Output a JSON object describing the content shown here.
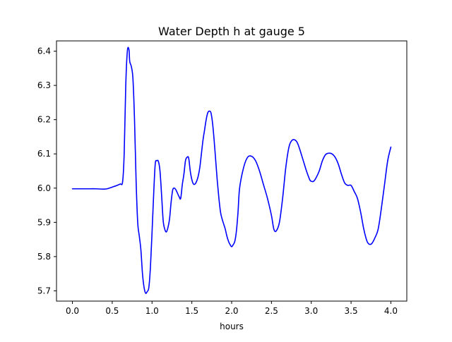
{
  "chart_data": {
    "type": "line",
    "title": "Water Depth h at gauge 5",
    "xlabel": "hours",
    "ylabel": "",
    "xlim": [
      -0.2,
      4.2
    ],
    "ylim": [
      5.67,
      6.43
    ],
    "grid": false,
    "x_ticks": [
      0.0,
      0.5,
      1.0,
      1.5,
      2.0,
      2.5,
      3.0,
      3.5,
      4.0
    ],
    "x_tick_labels": [
      "0.0",
      "0.5",
      "1.0",
      "1.5",
      "2.0",
      "2.5",
      "3.0",
      "3.5",
      "4.0"
    ],
    "y_ticks": [
      5.7,
      5.8,
      5.9,
      6.0,
      6.1,
      6.2,
      6.3,
      6.4
    ],
    "y_tick_labels": [
      "5.7",
      "5.8",
      "5.9",
      "6.0",
      "6.1",
      "6.2",
      "6.3",
      "6.4"
    ],
    "series": [
      {
        "color": "#0000ff",
        "x": [
          0.0,
          0.2,
          0.3,
          0.4,
          0.45,
          0.5,
          0.55,
          0.6,
          0.63,
          0.65,
          0.67,
          0.69,
          0.71,
          0.72,
          0.74,
          0.76,
          0.78,
          0.8,
          0.82,
          0.84,
          0.86,
          0.88,
          0.9,
          0.92,
          0.94,
          0.96,
          0.98,
          1.0,
          1.02,
          1.04,
          1.06,
          1.08,
          1.1,
          1.12,
          1.14,
          1.16,
          1.18,
          1.2,
          1.22,
          1.24,
          1.26,
          1.28,
          1.3,
          1.32,
          1.34,
          1.36,
          1.38,
          1.4,
          1.42,
          1.44,
          1.46,
          1.48,
          1.5,
          1.52,
          1.54,
          1.56,
          1.58,
          1.6,
          1.62,
          1.64,
          1.66,
          1.68,
          1.7,
          1.72,
          1.74,
          1.76,
          1.78,
          1.8,
          1.82,
          1.84,
          1.86,
          1.88,
          1.9,
          1.92,
          1.94,
          1.96,
          1.98,
          2.0,
          2.02,
          2.04,
          2.06,
          2.08,
          2.1,
          2.15,
          2.2,
          2.25,
          2.3,
          2.35,
          2.4,
          2.45,
          2.5,
          2.53,
          2.56,
          2.6,
          2.64,
          2.68,
          2.72,
          2.76,
          2.8,
          2.83,
          2.86,
          2.9,
          2.94,
          2.98,
          3.0,
          3.03,
          3.06,
          3.1,
          3.14,
          3.18,
          3.22,
          3.26,
          3.3,
          3.34,
          3.38,
          3.42,
          3.46,
          3.5,
          3.54,
          3.58,
          3.62,
          3.66,
          3.7,
          3.73,
          3.76,
          3.8,
          3.84,
          3.88,
          3.92,
          3.96,
          4.0
        ],
        "y": [
          5.998,
          5.998,
          5.998,
          5.997,
          5.999,
          6.003,
          6.007,
          6.012,
          6.018,
          6.1,
          6.3,
          6.4,
          6.405,
          6.37,
          6.355,
          6.32,
          6.2,
          6.02,
          5.9,
          5.86,
          5.82,
          5.75,
          5.71,
          5.693,
          5.698,
          5.71,
          5.77,
          5.87,
          5.98,
          6.07,
          6.08,
          6.078,
          6.05,
          5.98,
          5.905,
          5.88,
          5.872,
          5.885,
          5.91,
          5.96,
          5.995,
          6.0,
          5.995,
          5.985,
          5.975,
          5.97,
          6.01,
          6.04,
          6.08,
          6.09,
          6.088,
          6.05,
          6.025,
          6.012,
          6.012,
          6.02,
          6.035,
          6.06,
          6.1,
          6.14,
          6.17,
          6.2,
          6.22,
          6.225,
          6.22,
          6.19,
          6.14,
          6.08,
          6.02,
          5.97,
          5.93,
          5.91,
          5.895,
          5.88,
          5.86,
          5.845,
          5.835,
          5.829,
          5.835,
          5.845,
          5.875,
          5.93,
          6.0,
          6.06,
          6.09,
          6.093,
          6.08,
          6.05,
          6.01,
          5.97,
          5.92,
          5.88,
          5.875,
          5.9,
          5.97,
          6.06,
          6.12,
          6.14,
          6.14,
          6.13,
          6.11,
          6.08,
          6.05,
          6.025,
          6.02,
          6.02,
          6.03,
          6.05,
          6.08,
          6.098,
          6.102,
          6.1,
          6.09,
          6.07,
          6.04,
          6.015,
          6.008,
          6.008,
          5.99,
          5.97,
          5.93,
          5.88,
          5.845,
          5.836,
          5.838,
          5.855,
          5.88,
          5.94,
          6.01,
          6.08,
          6.12
        ]
      }
    ]
  }
}
